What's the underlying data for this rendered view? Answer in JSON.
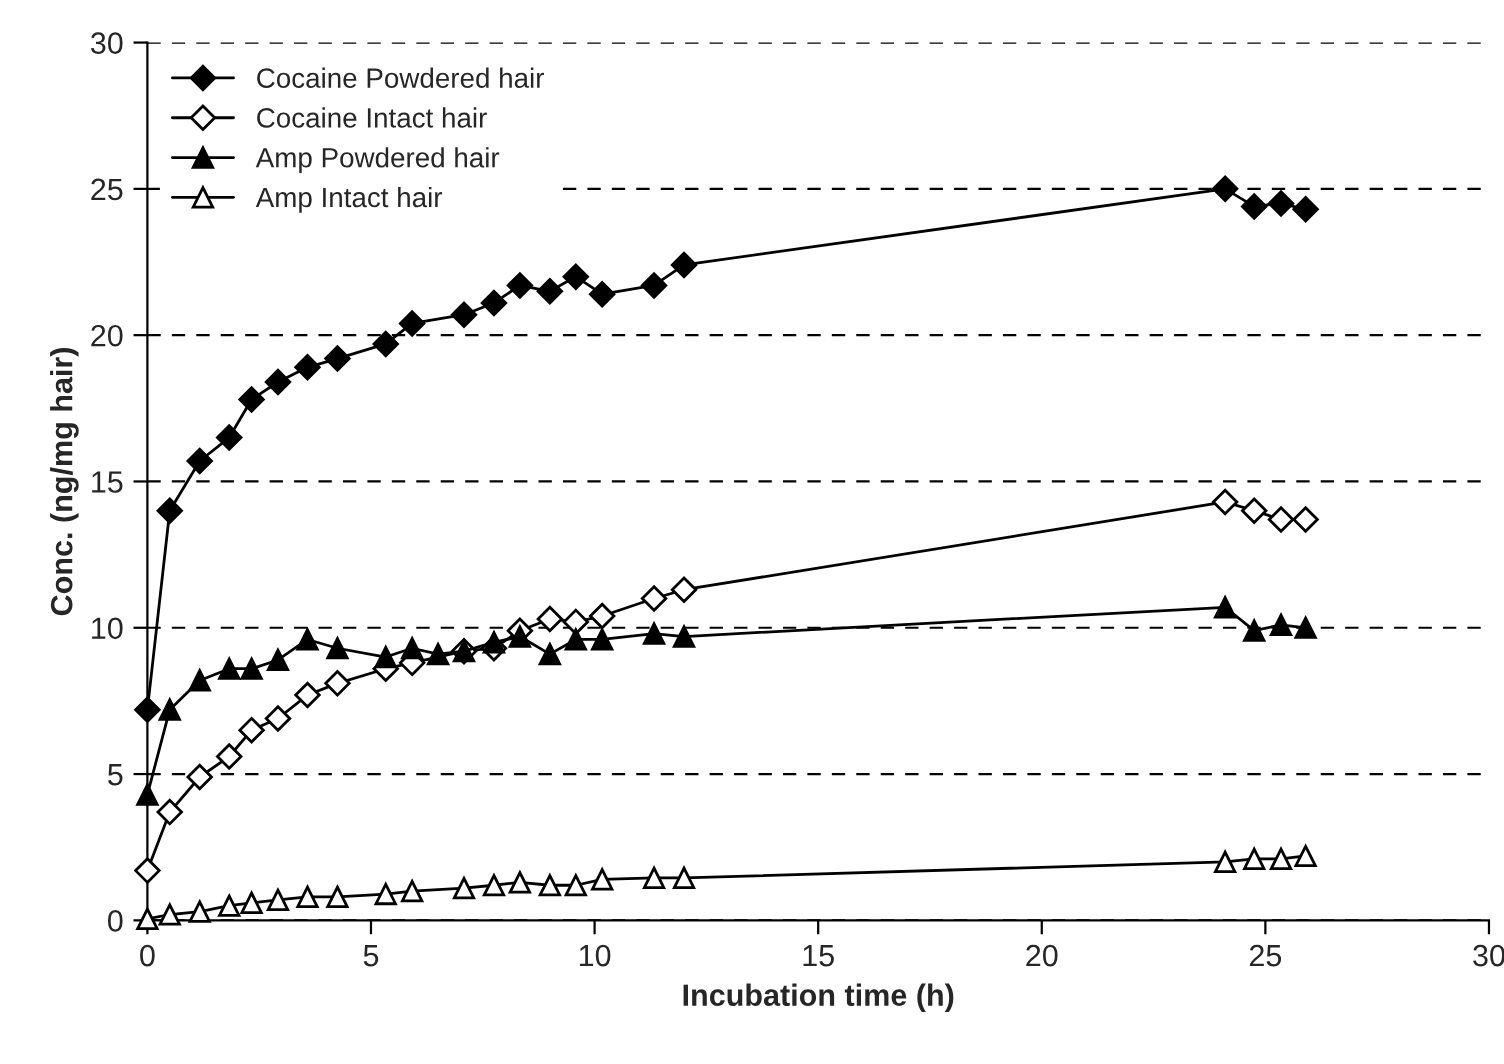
{
  "chart_data": {
    "type": "line",
    "xlabel": "Incubation time (h)",
    "ylabel": "Conc. (ng/mg hair)",
    "xlim": [
      0,
      30
    ],
    "xticks": [
      0,
      5,
      10,
      15,
      20,
      25,
      30
    ],
    "ylim": [
      0,
      30
    ],
    "yticks": [
      0,
      5,
      10,
      15,
      20,
      25,
      30
    ],
    "grid": "y",
    "legend": "top left",
    "line_style": "solid",
    "series": [
      {
        "name": "Cocaine Powdered hair",
        "color": "#000000",
        "marker": "diamond",
        "x": [
          0,
          0.5,
          1.17,
          1.83,
          2.33,
          2.92,
          3.58,
          4.25,
          5.33,
          5.92,
          7.08,
          7.75,
          8.33,
          9.0,
          9.58,
          10.17,
          11.33,
          12.0,
          24.1,
          24.75,
          25.35,
          25.9
        ],
        "values": [
          7.2,
          14.0,
          15.7,
          16.5,
          17.8,
          18.4,
          18.9,
          19.2,
          19.7,
          20.4,
          20.7,
          21.1,
          21.7,
          21.5,
          22.0,
          21.4,
          21.7,
          22.4,
          25.0,
          24.4,
          24.5,
          24.3
        ]
      },
      {
        "name": "Cocaine Intact hair",
        "color": "#ffffff",
        "marker": "diamond",
        "x": [
          0,
          0.5,
          1.17,
          1.83,
          2.33,
          2.92,
          3.58,
          4.25,
          5.33,
          5.92,
          7.08,
          7.75,
          8.33,
          9.0,
          9.58,
          10.17,
          11.33,
          12.0,
          24.1,
          24.75,
          25.35,
          25.9
        ],
        "values": [
          1.7,
          3.7,
          4.9,
          5.6,
          6.5,
          6.9,
          7.7,
          8.1,
          8.6,
          8.8,
          9.2,
          9.3,
          9.9,
          10.3,
          10.2,
          10.4,
          11.0,
          11.3,
          14.3,
          14.0,
          13.7,
          13.7
        ]
      },
      {
        "name": "Amp Powdered hair",
        "color": "#000000",
        "marker": "triangle",
        "x": [
          0,
          0.5,
          1.17,
          1.83,
          2.33,
          2.92,
          3.58,
          4.25,
          5.33,
          5.92,
          6.5,
          7.08,
          7.75,
          8.33,
          9.0,
          9.58,
          10.17,
          11.33,
          12.0,
          24.1,
          24.75,
          25.35,
          25.9
        ],
        "values": [
          4.3,
          7.2,
          8.2,
          8.6,
          8.6,
          8.9,
          9.6,
          9.3,
          9.0,
          9.3,
          9.1,
          9.2,
          9.5,
          9.7,
          9.1,
          9.6,
          9.6,
          9.8,
          9.7,
          10.7,
          9.9,
          10.1,
          10.0
        ]
      },
      {
        "name": "Amp Intact hair",
        "color": "#ffffff",
        "marker": "triangle",
        "x": [
          0,
          0.5,
          1.17,
          1.83,
          2.33,
          2.92,
          3.58,
          4.25,
          5.33,
          5.92,
          7.08,
          7.75,
          8.33,
          9.0,
          9.58,
          10.17,
          11.33,
          12.0,
          24.1,
          24.75,
          25.35,
          25.9
        ],
        "values": [
          0.05,
          0.2,
          0.3,
          0.5,
          0.6,
          0.7,
          0.8,
          0.8,
          0.9,
          1.0,
          1.1,
          1.2,
          1.3,
          1.2,
          1.2,
          1.4,
          1.45,
          1.45,
          2.0,
          2.1,
          2.1,
          2.2
        ]
      }
    ]
  }
}
